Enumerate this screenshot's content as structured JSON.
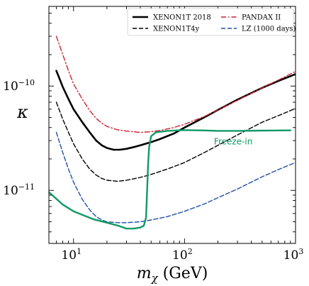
{
  "chart_data": {
    "type": "line",
    "xlabel": "m_χ (GeV)",
    "ylabel": "κ",
    "xscale": "log",
    "yscale": "log",
    "xlim": [
      6,
      1000
    ],
    "ylim": [
      3.1e-12,
      5.8e-10
    ],
    "grid": false,
    "legend_position": "top-right",
    "x_ticks": [
      {
        "value": 10,
        "base": "10",
        "exp": "1"
      },
      {
        "value": 100,
        "base": "10",
        "exp": "2"
      },
      {
        "value": 1000,
        "base": "10",
        "exp": "3"
      }
    ],
    "y_ticks": [
      {
        "value": 1e-11,
        "base": "10",
        "exp": "−11"
      },
      {
        "value": 1e-10,
        "base": "10",
        "exp": "−10"
      }
    ],
    "series": [
      {
        "name": "XENON1T 2018",
        "color": "#000000",
        "style": "solid",
        "width": 2.6,
        "points": [
          [
            7,
            1.4e-10
          ],
          [
            8,
            9.8e-11
          ],
          [
            9,
            7.5e-11
          ],
          [
            10,
            6e-11
          ],
          [
            12,
            4.5e-11
          ],
          [
            14,
            3.6e-11
          ],
          [
            16,
            3e-11
          ],
          [
            18,
            2.7e-11
          ],
          [
            20,
            2.55e-11
          ],
          [
            23,
            2.45e-11
          ],
          [
            26,
            2.45e-11
          ],
          [
            30,
            2.5e-11
          ],
          [
            35,
            2.6e-11
          ],
          [
            40,
            2.7e-11
          ],
          [
            50,
            2.9e-11
          ],
          [
            60,
            3.1e-11
          ],
          [
            80,
            3.5e-11
          ],
          [
            100,
            4e-11
          ],
          [
            150,
            5e-11
          ],
          [
            200,
            5.9e-11
          ],
          [
            300,
            7.4e-11
          ],
          [
            500,
            9.6e-11
          ],
          [
            700,
            1.12e-10
          ],
          [
            1000,
            1.3e-10
          ]
        ]
      },
      {
        "name": "XENON1T4y",
        "color": "#000000",
        "style": "dashed",
        "width": 1.4,
        "points": [
          [
            7,
            7e-11
          ],
          [
            8,
            4.8e-11
          ],
          [
            9,
            3.6e-11
          ],
          [
            10,
            2.8e-11
          ],
          [
            12,
            2e-11
          ],
          [
            14,
            1.6e-11
          ],
          [
            16,
            1.4e-11
          ],
          [
            18,
            1.3e-11
          ],
          [
            20,
            1.25e-11
          ],
          [
            25,
            1.22e-11
          ],
          [
            30,
            1.25e-11
          ],
          [
            40,
            1.33e-11
          ],
          [
            50,
            1.42e-11
          ],
          [
            70,
            1.6e-11
          ],
          [
            100,
            1.85e-11
          ],
          [
            150,
            2.3e-11
          ],
          [
            200,
            2.7e-11
          ],
          [
            300,
            3.4e-11
          ],
          [
            500,
            4.5e-11
          ],
          [
            700,
            5.2e-11
          ],
          [
            1000,
            6.1e-11
          ]
        ]
      },
      {
        "name": "PANDAX II",
        "color": "#cc2233",
        "style": "dashdot",
        "width": 1.4,
        "points": [
          [
            7,
            3e-10
          ],
          [
            8,
            2e-10
          ],
          [
            9,
            1.4e-10
          ],
          [
            10,
            1.05e-10
          ],
          [
            12,
            7.5e-11
          ],
          [
            14,
            5.8e-11
          ],
          [
            16,
            4.9e-11
          ],
          [
            18,
            4.4e-11
          ],
          [
            20,
            4.1e-11
          ],
          [
            25,
            3.8e-11
          ],
          [
            30,
            3.7e-11
          ],
          [
            40,
            3.6e-11
          ],
          [
            50,
            3.65e-11
          ],
          [
            60,
            3.75e-11
          ],
          [
            80,
            4e-11
          ],
          [
            100,
            4.3e-11
          ],
          [
            150,
            5.1e-11
          ],
          [
            200,
            5.9e-11
          ],
          [
            300,
            7.3e-11
          ],
          [
            500,
            9.6e-11
          ],
          [
            700,
            1.14e-10
          ],
          [
            1000,
            1.38e-10
          ]
        ]
      },
      {
        "name": "LZ (1000 days)",
        "color": "#1f4fa8",
        "style": "dashed",
        "width": 1.4,
        "points": [
          [
            7,
            3.6e-11
          ],
          [
            8,
            2.3e-11
          ],
          [
            9,
            1.6e-11
          ],
          [
            10,
            1.2e-11
          ],
          [
            12,
            8.2e-12
          ],
          [
            14,
            6.5e-12
          ],
          [
            16,
            5.6e-12
          ],
          [
            18,
            5.2e-12
          ],
          [
            20,
            5e-12
          ],
          [
            25,
            4.9e-12
          ],
          [
            30,
            4.9e-12
          ],
          [
            40,
            5e-12
          ],
          [
            50,
            5.2e-12
          ],
          [
            70,
            5.6e-12
          ],
          [
            100,
            6.3e-12
          ],
          [
            150,
            7.4e-12
          ],
          [
            200,
            8.5e-12
          ],
          [
            300,
            1.03e-11
          ],
          [
            500,
            1.35e-11
          ],
          [
            700,
            1.58e-11
          ],
          [
            1000,
            1.85e-11
          ]
        ]
      },
      {
        "name": "Freeze-in",
        "color": "#119966",
        "style": "solid",
        "width": 2.4,
        "points": [
          [
            6,
            9.6e-12
          ],
          [
            8,
            7.3e-12
          ],
          [
            10,
            6.3e-12
          ],
          [
            15,
            5.3e-12
          ],
          [
            20,
            4.9e-12
          ],
          [
            25,
            4.6e-12
          ],
          [
            30,
            4.3e-12
          ],
          [
            35,
            4.3e-12
          ],
          [
            40,
            4.4e-12
          ],
          [
            43,
            4.6e-12
          ],
          [
            45,
            5.5e-12
          ],
          [
            46,
            1e-11
          ],
          [
            47,
            1.8e-11
          ],
          [
            48,
            2.6e-11
          ],
          [
            50,
            3.3e-11
          ],
          [
            55,
            3.6e-11
          ],
          [
            70,
            3.72e-11
          ],
          [
            100,
            3.78e-11
          ],
          [
            150,
            3.75e-11
          ],
          [
            200,
            3.72e-11
          ],
          [
            300,
            3.72e-11
          ],
          [
            500,
            3.74e-11
          ],
          [
            900,
            3.76e-11
          ]
        ]
      }
    ],
    "annotations": [
      {
        "text": "Freeze-in",
        "color": "#119966",
        "x": 410,
        "y": 2.75e-11
      }
    ]
  }
}
